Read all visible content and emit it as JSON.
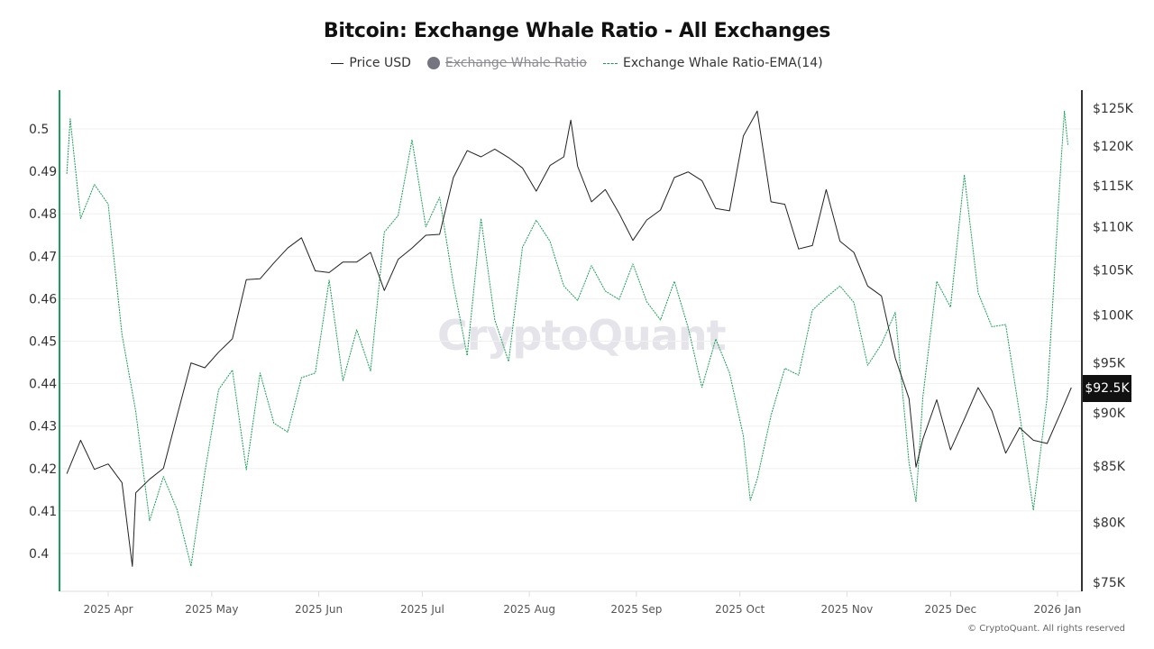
{
  "chart_data": {
    "type": "line",
    "title": "Bitcoin: Exchange Whale Ratio - All Exchanges",
    "legend": [
      {
        "label": "Price USD",
        "style": "solid",
        "color": "#222222",
        "hidden": false
      },
      {
        "label": "Exchange Whale Ratio",
        "style": "dot",
        "color": "#75757f",
        "hidden": true
      },
      {
        "label": "Exchange Whale Ratio-EMA(14)",
        "style": "dashed",
        "color": "#1a9f5a",
        "hidden": false
      }
    ],
    "legend_position": "top-center",
    "x_axis": {
      "type": "date",
      "range": [
        "2025-03-20",
        "2026-01-05"
      ],
      "ticks": [
        {
          "date": "2025-04-01",
          "label": "2025 Apr"
        },
        {
          "date": "2025-05-01",
          "label": "2025 May"
        },
        {
          "date": "2025-06-01",
          "label": "2025 Jun"
        },
        {
          "date": "2025-07-01",
          "label": "2025 Jul"
        },
        {
          "date": "2025-08-01",
          "label": "2025 Aug"
        },
        {
          "date": "2025-09-01",
          "label": "2025 Sep"
        },
        {
          "date": "2025-10-01",
          "label": "2025 Oct"
        },
        {
          "date": "2025-11-01",
          "label": "2025 Nov"
        },
        {
          "date": "2025-12-01",
          "label": "2025 Dec"
        },
        {
          "date": "2026-01-01",
          "label": "2026 Jan"
        }
      ]
    },
    "y_left": {
      "scale": "linear",
      "ticks": [
        {
          "value": 0.5,
          "label": "0.5"
        },
        {
          "value": 0.49,
          "label": "0.49"
        },
        {
          "value": 0.48,
          "label": "0.48"
        },
        {
          "value": 0.47,
          "label": "0.47"
        },
        {
          "value": 0.46,
          "label": "0.46"
        },
        {
          "value": 0.45,
          "label": "0.45"
        },
        {
          "value": 0.44,
          "label": "0.44"
        },
        {
          "value": 0.43,
          "label": "0.43"
        },
        {
          "value": 0.42,
          "label": "0.42"
        },
        {
          "value": 0.41,
          "label": "0.41"
        },
        {
          "value": 0.4,
          "label": "0.4"
        }
      ],
      "axis_color": "#1a9f5a"
    },
    "y_right": {
      "scale": "log",
      "range": [
        75000,
        125000
      ],
      "ticks": [
        {
          "value": 125000,
          "label": "$125K"
        },
        {
          "value": 120000,
          "label": "$120K"
        },
        {
          "value": 115000,
          "label": "$115K"
        },
        {
          "value": 110000,
          "label": "$110K"
        },
        {
          "value": 105000,
          "label": "$105K"
        },
        {
          "value": 100000,
          "label": "$100K"
        },
        {
          "value": 95000,
          "label": "$95K"
        },
        {
          "value": 90000,
          "label": "$90K"
        },
        {
          "value": 85000,
          "label": "$85K"
        },
        {
          "value": 80000,
          "label": "$80K"
        },
        {
          "value": 75000,
          "label": "$75K"
        }
      ],
      "current_marker": {
        "value": 92500,
        "label": "$92.5K"
      }
    },
    "grid": true,
    "series": [
      {
        "name": "Price USD",
        "axis": "right",
        "color": "#222222",
        "points": [
          [
            "2025-03-20",
            84300
          ],
          [
            "2025-03-24",
            87400
          ],
          [
            "2025-03-28",
            84700
          ],
          [
            "2025-04-01",
            85200
          ],
          [
            "2025-04-05",
            83500
          ],
          [
            "2025-04-08",
            76300
          ],
          [
            "2025-04-09",
            82600
          ],
          [
            "2025-04-13",
            83800
          ],
          [
            "2025-04-17",
            84800
          ],
          [
            "2025-04-21",
            89800
          ],
          [
            "2025-04-25",
            95000
          ],
          [
            "2025-04-29",
            94500
          ],
          [
            "2025-05-03",
            96100
          ],
          [
            "2025-05-07",
            97500
          ],
          [
            "2025-05-11",
            103900
          ],
          [
            "2025-05-15",
            104000
          ],
          [
            "2025-05-19",
            105800
          ],
          [
            "2025-05-23",
            107500
          ],
          [
            "2025-05-27",
            108700
          ],
          [
            "2025-05-31",
            104900
          ],
          [
            "2025-06-04",
            104700
          ],
          [
            "2025-06-08",
            105900
          ],
          [
            "2025-06-12",
            105900
          ],
          [
            "2025-06-16",
            107000
          ],
          [
            "2025-06-20",
            102700
          ],
          [
            "2025-06-24",
            106200
          ],
          [
            "2025-06-28",
            107500
          ],
          [
            "2025-07-02",
            109000
          ],
          [
            "2025-07-06",
            109100
          ],
          [
            "2025-07-10",
            116000
          ],
          [
            "2025-07-14",
            119400
          ],
          [
            "2025-07-18",
            118600
          ],
          [
            "2025-07-22",
            119600
          ],
          [
            "2025-07-26",
            118500
          ],
          [
            "2025-07-30",
            117200
          ],
          [
            "2025-08-03",
            114300
          ],
          [
            "2025-08-07",
            117500
          ],
          [
            "2025-08-11",
            118600
          ],
          [
            "2025-08-13",
            123400
          ],
          [
            "2025-08-15",
            117400
          ],
          [
            "2025-08-19",
            113000
          ],
          [
            "2025-08-23",
            114500
          ],
          [
            "2025-08-27",
            111600
          ],
          [
            "2025-08-31",
            108400
          ],
          [
            "2025-09-04",
            110800
          ],
          [
            "2025-09-08",
            112000
          ],
          [
            "2025-09-12",
            116000
          ],
          [
            "2025-09-16",
            116700
          ],
          [
            "2025-09-20",
            115600
          ],
          [
            "2025-09-24",
            112200
          ],
          [
            "2025-09-28",
            111900
          ],
          [
            "2025-10-02",
            121300
          ],
          [
            "2025-10-06",
            124600
          ],
          [
            "2025-10-10",
            113000
          ],
          [
            "2025-10-14",
            112700
          ],
          [
            "2025-10-18",
            107400
          ],
          [
            "2025-10-22",
            107800
          ],
          [
            "2025-10-26",
            114500
          ],
          [
            "2025-10-30",
            108300
          ],
          [
            "2025-11-03",
            107000
          ],
          [
            "2025-11-07",
            103200
          ],
          [
            "2025-11-11",
            102100
          ],
          [
            "2025-11-15",
            95500
          ],
          [
            "2025-11-19",
            91400
          ],
          [
            "2025-11-21",
            84900
          ],
          [
            "2025-11-23",
            87500
          ],
          [
            "2025-11-27",
            91300
          ],
          [
            "2025-12-01",
            86500
          ],
          [
            "2025-12-05",
            89400
          ],
          [
            "2025-12-09",
            92500
          ],
          [
            "2025-12-13",
            90200
          ],
          [
            "2025-12-17",
            86200
          ],
          [
            "2025-12-21",
            88600
          ],
          [
            "2025-12-25",
            87400
          ],
          [
            "2025-12-29",
            87100
          ],
          [
            "2026-01-02",
            90100
          ],
          [
            "2026-01-05",
            92500
          ]
        ]
      },
      {
        "name": "Exchange Whale Ratio-EMA(14)",
        "axis": "left",
        "color": "#1a9f5a",
        "points": [
          [
            "2025-03-20",
            0.4894
          ],
          [
            "2025-03-21",
            0.5024
          ],
          [
            "2025-03-24",
            0.4789
          ],
          [
            "2025-03-28",
            0.4869
          ],
          [
            "2025-04-01",
            0.4823
          ],
          [
            "2025-04-05",
            0.4516
          ],
          [
            "2025-04-09",
            0.4334
          ],
          [
            "2025-04-13",
            0.4077
          ],
          [
            "2025-04-17",
            0.4181
          ],
          [
            "2025-04-21",
            0.4102
          ],
          [
            "2025-04-25",
            0.397
          ],
          [
            "2025-04-29",
            0.4191
          ],
          [
            "2025-05-03",
            0.4386
          ],
          [
            "2025-05-07",
            0.4432
          ],
          [
            "2025-05-11",
            0.4197
          ],
          [
            "2025-05-15",
            0.4425
          ],
          [
            "2025-05-19",
            0.4307
          ],
          [
            "2025-05-23",
            0.4286
          ],
          [
            "2025-05-27",
            0.4414
          ],
          [
            "2025-05-31",
            0.4425
          ],
          [
            "2025-06-04",
            0.4644
          ],
          [
            "2025-06-08",
            0.4407
          ],
          [
            "2025-06-12",
            0.4527
          ],
          [
            "2025-06-16",
            0.443
          ],
          [
            "2025-06-20",
            0.4757
          ],
          [
            "2025-06-24",
            0.4796
          ],
          [
            "2025-06-28",
            0.4974
          ],
          [
            "2025-07-02",
            0.4769
          ],
          [
            "2025-07-06",
            0.4839
          ],
          [
            "2025-07-10",
            0.4634
          ],
          [
            "2025-07-14",
            0.4466
          ],
          [
            "2025-07-18",
            0.4789
          ],
          [
            "2025-07-22",
            0.455
          ],
          [
            "2025-07-26",
            0.4452
          ],
          [
            "2025-07-30",
            0.4721
          ],
          [
            "2025-08-03",
            0.4785
          ],
          [
            "2025-08-07",
            0.4735
          ],
          [
            "2025-08-11",
            0.463
          ],
          [
            "2025-08-15",
            0.4596
          ],
          [
            "2025-08-19",
            0.4678
          ],
          [
            "2025-08-23",
            0.4618
          ],
          [
            "2025-08-27",
            0.4598
          ],
          [
            "2025-08-31",
            0.4682
          ],
          [
            "2025-09-04",
            0.4593
          ],
          [
            "2025-09-08",
            0.455
          ],
          [
            "2025-09-12",
            0.4641
          ],
          [
            "2025-09-16",
            0.4532
          ],
          [
            "2025-09-20",
            0.4391
          ],
          [
            "2025-09-24",
            0.4505
          ],
          [
            "2025-09-28",
            0.4425
          ],
          [
            "2025-10-02",
            0.4277
          ],
          [
            "2025-10-04",
            0.4125
          ],
          [
            "2025-10-06",
            0.4175
          ],
          [
            "2025-10-10",
            0.4325
          ],
          [
            "2025-10-14",
            0.4436
          ],
          [
            "2025-10-18",
            0.442
          ],
          [
            "2025-10-22",
            0.4573
          ],
          [
            "2025-10-26",
            0.4603
          ],
          [
            "2025-10-30",
            0.463
          ],
          [
            "2025-11-03",
            0.4591
          ],
          [
            "2025-11-07",
            0.4443
          ],
          [
            "2025-11-11",
            0.4493
          ],
          [
            "2025-11-15",
            0.4568
          ],
          [
            "2025-11-19",
            0.4213
          ],
          [
            "2025-11-21",
            0.4122
          ],
          [
            "2025-11-23",
            0.4368
          ],
          [
            "2025-11-27",
            0.4641
          ],
          [
            "2025-12-01",
            0.458
          ],
          [
            "2025-12-05",
            0.4892
          ],
          [
            "2025-12-09",
            0.4614
          ],
          [
            "2025-12-13",
            0.4534
          ],
          [
            "2025-12-17",
            0.4539
          ],
          [
            "2025-12-21",
            0.4329
          ],
          [
            "2025-12-25",
            0.4102
          ],
          [
            "2025-12-29",
            0.4368
          ],
          [
            "2026-01-02",
            0.4919
          ],
          [
            "2026-01-03",
            0.5042
          ],
          [
            "2026-01-04",
            0.4962
          ]
        ]
      }
    ]
  },
  "watermark": "CryptoQuant",
  "copyright": "© CryptoQuant. All rights reserved"
}
